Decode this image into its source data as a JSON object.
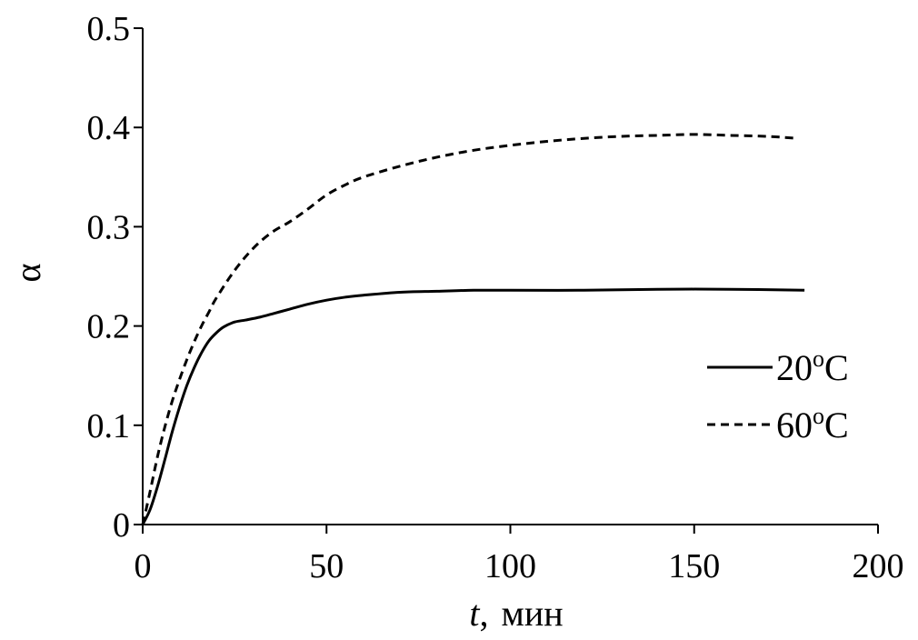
{
  "chart_data": {
    "type": "line",
    "title": "",
    "xlabel": {
      "var": "t",
      "sep": ",",
      "unit": "мин"
    },
    "ylabel": "α",
    "xlim": [
      0,
      200
    ],
    "ylim": [
      0,
      0.5
    ],
    "xticks": [
      "0",
      "50",
      "100",
      "150",
      "200"
    ],
    "yticks": [
      "0",
      "0.1",
      "0.2",
      "0.3",
      "0.4",
      "0.5"
    ],
    "grid": false,
    "legend_position": "right",
    "series": [
      {
        "name": "20",
        "name_sup": "o",
        "name_suffix": "C",
        "style": "solid",
        "color": "#000000",
        "x": [
          0,
          2,
          4,
          6,
          8,
          10,
          12,
          14,
          16,
          18,
          20,
          22,
          25,
          28,
          32,
          36,
          40,
          45,
          50,
          55,
          60,
          70,
          80,
          90,
          100,
          120,
          140,
          160,
          180
        ],
        "y": [
          0,
          0.015,
          0.038,
          0.065,
          0.093,
          0.118,
          0.14,
          0.158,
          0.173,
          0.185,
          0.193,
          0.199,
          0.204,
          0.206,
          0.209,
          0.213,
          0.217,
          0.222,
          0.226,
          0.229,
          0.231,
          0.234,
          0.235,
          0.236,
          0.236,
          0.236,
          0.237,
          0.237,
          0.236
        ]
      },
      {
        "name": "60",
        "name_sup": "o",
        "name_suffix": "C",
        "style": "dashed",
        "color": "#000000",
        "x": [
          0,
          2,
          4,
          6,
          8,
          10,
          12,
          14,
          16,
          18,
          20,
          25,
          30,
          35,
          40,
          45,
          50,
          55,
          60,
          70,
          80,
          90,
          100,
          110,
          120,
          130,
          140,
          150,
          160,
          170,
          178
        ],
        "y": [
          0,
          0.033,
          0.068,
          0.098,
          0.124,
          0.146,
          0.166,
          0.184,
          0.2,
          0.214,
          0.228,
          0.256,
          0.278,
          0.294,
          0.305,
          0.318,
          0.332,
          0.342,
          0.35,
          0.361,
          0.37,
          0.377,
          0.382,
          0.386,
          0.389,
          0.391,
          0.392,
          0.393,
          0.392,
          0.391,
          0.389
        ]
      }
    ]
  }
}
